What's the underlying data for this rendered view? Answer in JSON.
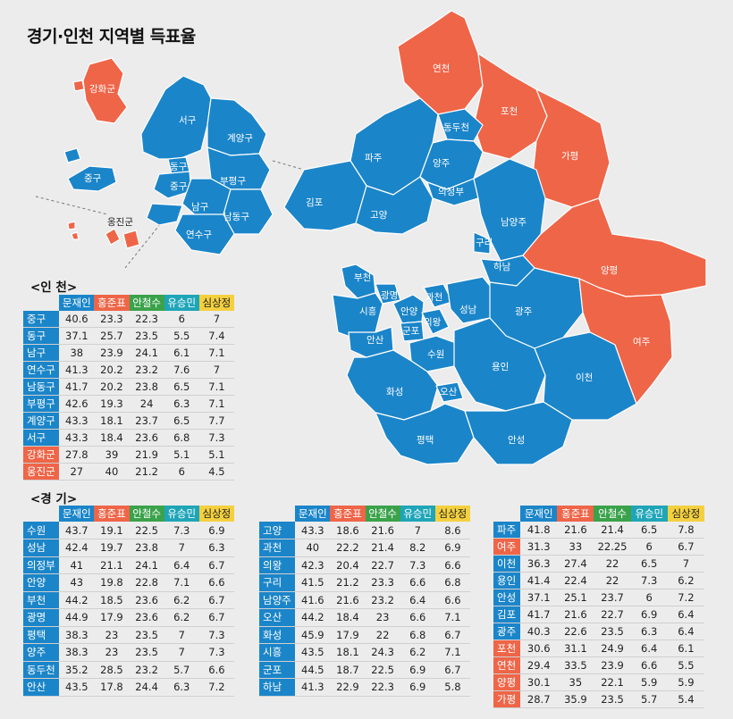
{
  "title": "경기·인천 지역별 득표율",
  "colors": {
    "blue": "#1b85c9",
    "red": "#ef6548",
    "green": "#3aa24a",
    "teal": "#1fa5b8",
    "yellow": "#f4d03f"
  },
  "map_labels": {
    "ganghwa": "강화군",
    "seogu": "서구",
    "gyeyang": "계양구",
    "donggu": "동구",
    "junggu_small": "중구",
    "bupyeong": "부평구",
    "namgu": "남구",
    "namdong": "남동구",
    "yeonsu": "연수구",
    "junggu": "중구",
    "ongjin": "옹진군",
    "yeoncheon": "연천",
    "pocheon": "포천",
    "dongducheon": "동두천",
    "paju": "파주",
    "yangju": "양주",
    "gapyeong": "가평",
    "uijeongbu": "의정부",
    "gimpo": "김포",
    "goyang": "고양",
    "namyangju": "남양주",
    "guri": "구리",
    "yangpyeong": "양평",
    "hanam": "하남",
    "bucheon": "부천",
    "gwangmyeong": "광명",
    "gwacheon": "과천",
    "siheung": "시흥",
    "anyang": "안양",
    "uiwang": "의왕",
    "seongnam": "성남",
    "gwangju": "광주",
    "ansan": "안산",
    "gunpo": "군포",
    "suwon": "수원",
    "yeoju": "여주",
    "yongin": "용인",
    "icheon": "이천",
    "hwaseong": "화성",
    "osan": "오산",
    "pyeongtaek": "평택",
    "anseong": "안성"
  },
  "headers": [
    "문재인",
    "홍준표",
    "안철수",
    "유승민",
    "심상정"
  ],
  "incheon": {
    "section": "<인 천>",
    "rows": [
      {
        "name": "중구",
        "w": "blue",
        "v": [
          "40.6",
          "23.3",
          "22.3",
          "6",
          "7"
        ]
      },
      {
        "name": "동구",
        "w": "blue",
        "v": [
          "37.1",
          "25.7",
          "23.5",
          "5.5",
          "7.4"
        ]
      },
      {
        "name": "남구",
        "w": "blue",
        "v": [
          "38",
          "23.9",
          "24.1",
          "6.1",
          "7.1"
        ]
      },
      {
        "name": "연수구",
        "w": "blue",
        "v": [
          "41.3",
          "20.2",
          "23.2",
          "7.6",
          "7"
        ]
      },
      {
        "name": "남동구",
        "w": "blue",
        "v": [
          "41.7",
          "20.2",
          "23.8",
          "6.5",
          "7.1"
        ]
      },
      {
        "name": "부평구",
        "w": "blue",
        "v": [
          "42.6",
          "19.3",
          "24",
          "6.3",
          "7.1"
        ]
      },
      {
        "name": "계양구",
        "w": "blue",
        "v": [
          "43.3",
          "18.1",
          "23.7",
          "6.5",
          "7.7"
        ]
      },
      {
        "name": "서구",
        "w": "blue",
        "v": [
          "43.3",
          "18.4",
          "23.6",
          "6.8",
          "7.3"
        ]
      },
      {
        "name": "강화군",
        "w": "red",
        "v": [
          "27.8",
          "39",
          "21.9",
          "5.1",
          "5.1"
        ]
      },
      {
        "name": "옹진군",
        "w": "red",
        "v": [
          "27",
          "40",
          "21.2",
          "6",
          "4.5"
        ]
      }
    ]
  },
  "gyeonggi": {
    "section": "<경 기>",
    "tables": [
      [
        {
          "name": "수원",
          "w": "blue",
          "v": [
            "43.7",
            "19.1",
            "22.5",
            "7.3",
            "6.9"
          ]
        },
        {
          "name": "성남",
          "w": "blue",
          "v": [
            "42.4",
            "19.7",
            "23.8",
            "7",
            "6.3"
          ]
        },
        {
          "name": "의정부",
          "w": "blue",
          "v": [
            "41",
            "21.1",
            "24.1",
            "6.4",
            "6.7"
          ]
        },
        {
          "name": "안양",
          "w": "blue",
          "v": [
            "43",
            "19.8",
            "22.8",
            "7.1",
            "6.6"
          ]
        },
        {
          "name": "부천",
          "w": "blue",
          "v": [
            "44.2",
            "18.5",
            "23.6",
            "6.2",
            "6.7"
          ]
        },
        {
          "name": "광명",
          "w": "blue",
          "v": [
            "44.9",
            "17.9",
            "23.6",
            "6.2",
            "6.7"
          ]
        },
        {
          "name": "평택",
          "w": "blue",
          "v": [
            "38.3",
            "23",
            "23.5",
            "7",
            "7.3"
          ]
        },
        {
          "name": "양주",
          "w": "blue",
          "v": [
            "38.3",
            "23",
            "23.5",
            "7",
            "7.3"
          ]
        },
        {
          "name": "동두천",
          "w": "blue",
          "v": [
            "35.2",
            "28.5",
            "23.2",
            "5.7",
            "6.6"
          ]
        },
        {
          "name": "안산",
          "w": "blue",
          "v": [
            "43.5",
            "17.8",
            "24.4",
            "6.3",
            "7.2"
          ]
        }
      ],
      [
        {
          "name": "고양",
          "w": "blue",
          "v": [
            "43.3",
            "18.6",
            "21.6",
            "7",
            "8.6"
          ]
        },
        {
          "name": "과천",
          "w": "blue",
          "v": [
            "40",
            "22.2",
            "21.4",
            "8.2",
            "6.9"
          ]
        },
        {
          "name": "의왕",
          "w": "blue",
          "v": [
            "42.3",
            "20.4",
            "22.7",
            "7.3",
            "6.6"
          ]
        },
        {
          "name": "구리",
          "w": "blue",
          "v": [
            "41.5",
            "21.2",
            "23.3",
            "6.6",
            "6.8"
          ]
        },
        {
          "name": "남양주",
          "w": "blue",
          "v": [
            "41.6",
            "21.6",
            "23.2",
            "6.4",
            "6.6"
          ]
        },
        {
          "name": "오산",
          "w": "blue",
          "v": [
            "44.2",
            "18.4",
            "23",
            "6.6",
            "7.1"
          ]
        },
        {
          "name": "화성",
          "w": "blue",
          "v": [
            "45.9",
            "17.9",
            "22",
            "6.8",
            "6.7"
          ]
        },
        {
          "name": "시흥",
          "w": "blue",
          "v": [
            "43.5",
            "18.1",
            "24.3",
            "6.2",
            "7.1"
          ]
        },
        {
          "name": "군포",
          "w": "blue",
          "v": [
            "44.5",
            "18.7",
            "22.5",
            "6.9",
            "6.7"
          ]
        },
        {
          "name": "하남",
          "w": "blue",
          "v": [
            "41.3",
            "22.9",
            "22.3",
            "6.9",
            "5.8"
          ]
        }
      ],
      [
        {
          "name": "파주",
          "w": "blue",
          "v": [
            "41.8",
            "21.6",
            "21.4",
            "6.5",
            "7.8"
          ]
        },
        {
          "name": "여주",
          "w": "red",
          "v": [
            "31.3",
            "33",
            "22.25",
            "6",
            "6.7"
          ]
        },
        {
          "name": "이천",
          "w": "blue",
          "v": [
            "36.3",
            "27.4",
            "22",
            "6.5",
            "7"
          ]
        },
        {
          "name": "용인",
          "w": "blue",
          "v": [
            "41.4",
            "22.4",
            "22",
            "7.3",
            "6.2"
          ]
        },
        {
          "name": "안성",
          "w": "blue",
          "v": [
            "37.1",
            "25.1",
            "23.7",
            "6",
            "7.2"
          ]
        },
        {
          "name": "김포",
          "w": "blue",
          "v": [
            "41.7",
            "21.6",
            "22.7",
            "6.9",
            "6.4"
          ]
        },
        {
          "name": "광주",
          "w": "blue",
          "v": [
            "40.3",
            "22.6",
            "23.5",
            "6.3",
            "6.4"
          ]
        },
        {
          "name": "포천",
          "w": "red",
          "v": [
            "30.6",
            "31.1",
            "24.9",
            "6.4",
            "6.1"
          ]
        },
        {
          "name": "연천",
          "w": "red",
          "v": [
            "29.4",
            "33.5",
            "23.9",
            "6.6",
            "5.5"
          ]
        },
        {
          "name": "양평",
          "w": "red",
          "v": [
            "30.1",
            "35",
            "22.1",
            "5.9",
            "5.9"
          ]
        },
        {
          "name": "가평",
          "w": "red",
          "v": [
            "28.7",
            "35.9",
            "23.5",
            "5.7",
            "5.4"
          ]
        }
      ]
    ]
  }
}
